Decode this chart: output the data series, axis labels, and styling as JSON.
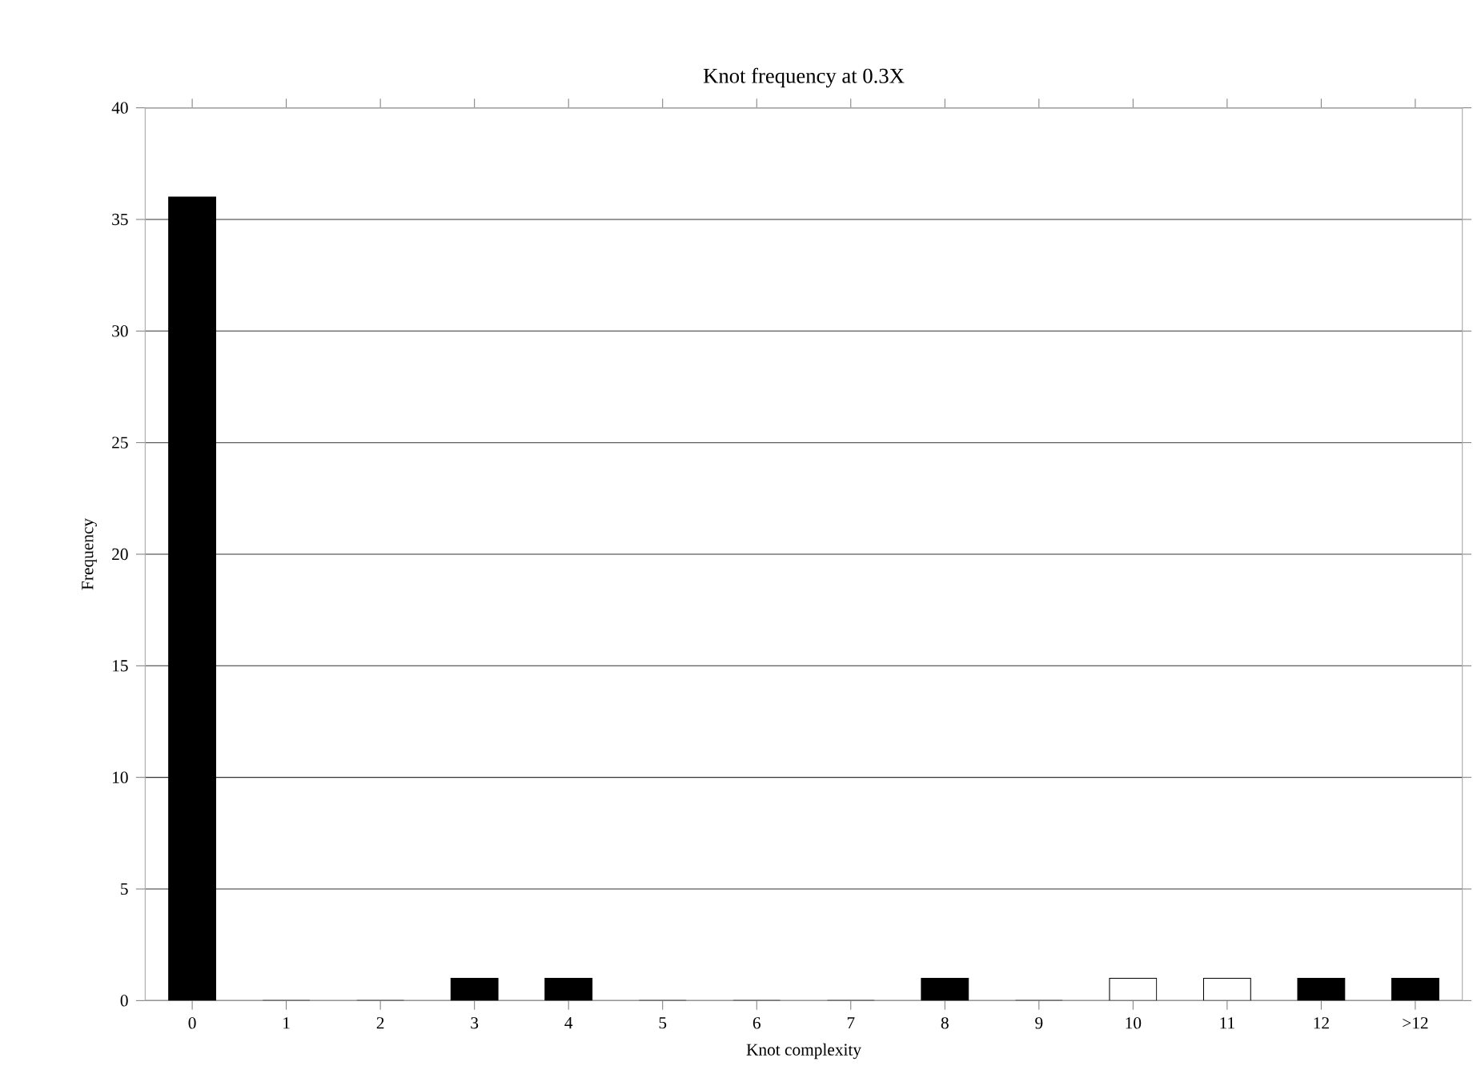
{
  "chart_data": {
    "type": "bar",
    "title": "Knot frequency at 0.3X",
    "xlabel": "Knot complexity",
    "ylabel": "Frequency",
    "categories": [
      "0",
      "1",
      "2",
      "3",
      "4",
      "5",
      "6",
      "7",
      "8",
      "9",
      "10",
      "11",
      "12",
      ">12"
    ],
    "values": [
      36,
      0,
      0,
      1,
      1,
      0,
      0,
      0,
      1,
      0,
      1,
      1,
      1,
      1
    ],
    "colors": [
      "#000000",
      "#000000",
      "#000000",
      "#000000",
      "#000000",
      "#000000",
      "#000000",
      "#000000",
      "#000000",
      "#000000",
      "#ffffff",
      "#ffffff",
      "#000000",
      "#000000"
    ],
    "ylim": [
      0,
      40
    ],
    "yticks": [
      0,
      5,
      10,
      15,
      20,
      25,
      30,
      35,
      40
    ],
    "grid": "y"
  }
}
